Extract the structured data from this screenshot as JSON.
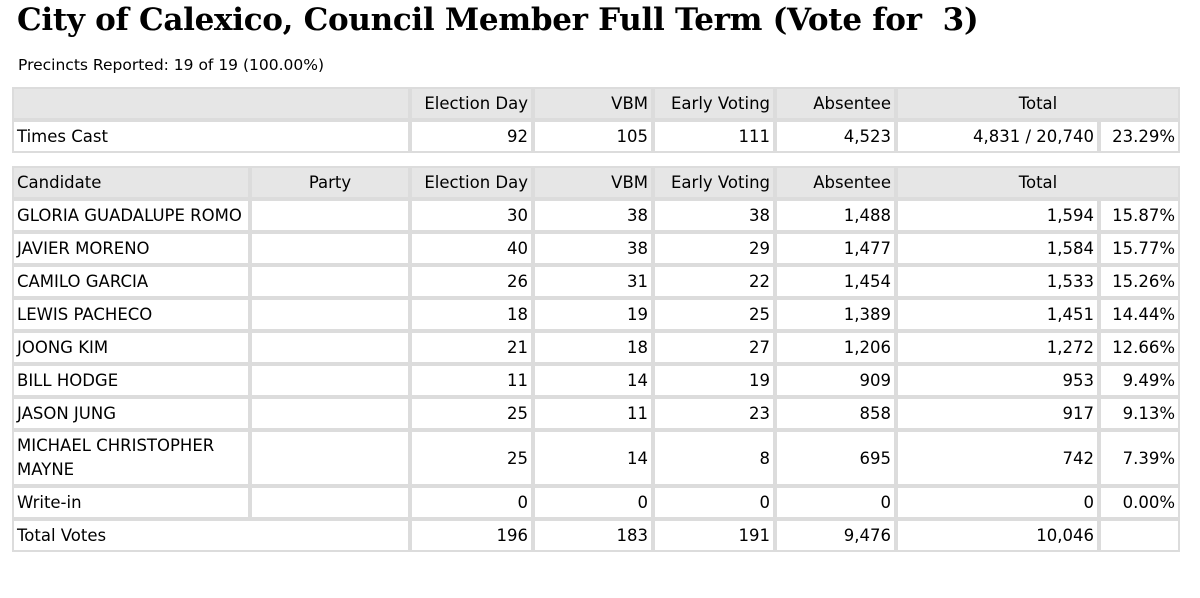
{
  "title": "City of Calexico, Council Member Full Term (Vote for  3)",
  "precincts": "Precincts Reported: 19 of 19 (100.00%)",
  "times_cast": {
    "headers": [
      "",
      "Election Day",
      "VBM",
      "Early Voting",
      "Absentee",
      "Total"
    ],
    "row": {
      "label": "Times Cast",
      "election_day": "92",
      "vbm": "105",
      "early_voting": "111",
      "absentee": "4,523",
      "total": "4,831 / 20,740",
      "pct": "23.29%"
    }
  },
  "results": {
    "headers": [
      "Candidate",
      "Party",
      "Election Day",
      "VBM",
      "Early Voting",
      "Absentee",
      "Total"
    ],
    "rows": [
      {
        "name": "GLORIA GUADALUPE ROMO",
        "party": "",
        "election_day": "30",
        "vbm": "38",
        "early_voting": "38",
        "absentee": "1,488",
        "total": "1,594",
        "pct": "15.87%"
      },
      {
        "name": "JAVIER MORENO",
        "party": "",
        "election_day": "40",
        "vbm": "38",
        "early_voting": "29",
        "absentee": "1,477",
        "total": "1,584",
        "pct": "15.77%"
      },
      {
        "name": "CAMILO GARCIA",
        "party": "",
        "election_day": "26",
        "vbm": "31",
        "early_voting": "22",
        "absentee": "1,454",
        "total": "1,533",
        "pct": "15.26%"
      },
      {
        "name": "LEWIS PACHECO",
        "party": "",
        "election_day": "18",
        "vbm": "19",
        "early_voting": "25",
        "absentee": "1,389",
        "total": "1,451",
        "pct": "14.44%"
      },
      {
        "name": "JOONG KIM",
        "party": "",
        "election_day": "21",
        "vbm": "18",
        "early_voting": "27",
        "absentee": "1,206",
        "total": "1,272",
        "pct": "12.66%"
      },
      {
        "name": "BILL HODGE",
        "party": "",
        "election_day": "11",
        "vbm": "14",
        "early_voting": "19",
        "absentee": "909",
        "total": "953",
        "pct": "9.49%"
      },
      {
        "name": "JASON JUNG",
        "party": "",
        "election_day": "25",
        "vbm": "11",
        "early_voting": "23",
        "absentee": "858",
        "total": "917",
        "pct": "9.13%"
      },
      {
        "name": "MICHAEL CHRISTOPHER MAYNE",
        "party": "",
        "election_day": "25",
        "vbm": "14",
        "early_voting": "8",
        "absentee": "695",
        "total": "742",
        "pct": "7.39%"
      },
      {
        "name": "Write-in",
        "party": "",
        "election_day": "0",
        "vbm": "0",
        "early_voting": "0",
        "absentee": "0",
        "total": "0",
        "pct": "0.00%"
      }
    ],
    "total_votes": {
      "label": "Total Votes",
      "election_day": "196",
      "vbm": "183",
      "early_voting": "191",
      "absentee": "9,476",
      "total": "10,046"
    }
  }
}
